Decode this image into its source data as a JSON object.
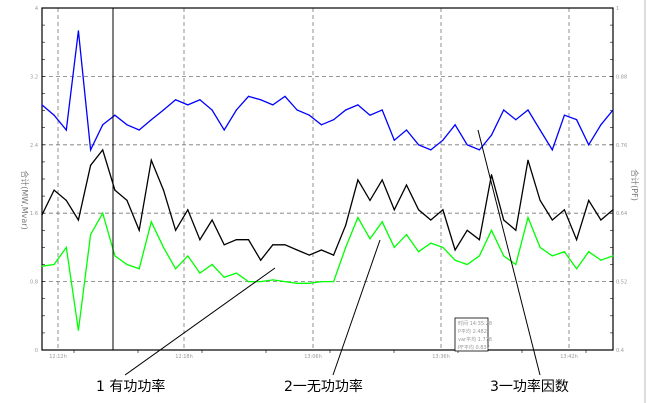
{
  "chart_data": {
    "type": "line",
    "left_axis": {
      "label": "合计(MW,Mvar)",
      "range": [
        0,
        4
      ],
      "ticks": [
        "0",
        "0.8",
        "1.6",
        "2.4",
        "3.2",
        "4"
      ]
    },
    "right_axis": {
      "label": "合计(PF)",
      "range": [
        0.4,
        1
      ],
      "ticks": [
        "0.4",
        "0.52",
        "0.64",
        "0.76",
        "0.88",
        "1"
      ]
    },
    "x_ticks": [
      "12:12h",
      "12:18h",
      "13:06h",
      "13:36h",
      "13:42h"
    ],
    "grid": true,
    "series": [
      {
        "name": "1 有功功率",
        "axis": "left",
        "color": "#000000",
        "values": [
          1.58,
          1.87,
          1.75,
          1.52,
          2.16,
          2.34,
          1.87,
          1.75,
          1.4,
          2.22,
          1.87,
          1.4,
          1.64,
          1.29,
          1.52,
          1.23,
          1.29,
          1.29,
          1.05,
          1.23,
          1.23,
          1.17,
          1.11,
          1.17,
          1.11,
          1.46,
          1.99,
          1.75,
          1.99,
          1.64,
          1.93,
          1.64,
          1.52,
          1.64,
          1.17,
          1.4,
          1.29,
          2.05,
          1.52,
          1.4,
          2.22,
          1.75,
          1.52,
          1.64,
          1.29,
          1.75,
          1.52,
          1.64
        ]
      },
      {
        "name": "2一无功功率",
        "axis": "left",
        "color": "#00ff00",
        "values": [
          0.98,
          1.0,
          1.2,
          0.23,
          1.35,
          1.6,
          1.1,
          1.0,
          0.95,
          1.5,
          1.2,
          0.95,
          1.1,
          0.9,
          1.0,
          0.85,
          0.9,
          0.8,
          0.8,
          0.82,
          0.8,
          0.78,
          0.78,
          0.8,
          0.8,
          1.2,
          1.55,
          1.3,
          1.5,
          1.2,
          1.35,
          1.15,
          1.25,
          1.2,
          1.05,
          1.0,
          1.1,
          1.4,
          1.1,
          1.0,
          1.55,
          1.2,
          1.1,
          1.15,
          0.95,
          1.15,
          1.05,
          1.1
        ]
      },
      {
        "name": "3一功率因数",
        "axis": "right",
        "color": "#0000ff",
        "values": [
          0.83,
          0.812,
          0.786,
          0.96,
          0.751,
          0.795,
          0.812,
          0.795,
          0.786,
          0.804,
          0.821,
          0.839,
          0.83,
          0.839,
          0.821,
          0.786,
          0.821,
          0.845,
          0.839,
          0.83,
          0.845,
          0.821,
          0.812,
          0.795,
          0.804,
          0.821,
          0.83,
          0.812,
          0.821,
          0.768,
          0.786,
          0.76,
          0.751,
          0.768,
          0.795,
          0.76,
          0.751,
          0.777,
          0.821,
          0.804,
          0.821,
          0.786,
          0.751,
          0.812,
          0.804,
          0.76,
          0.795,
          0.821
        ]
      }
    ],
    "legend_box": [
      "时间 14:35:28",
      "P平均 2.482",
      "var平均 1.778",
      "PF平均 0.837"
    ],
    "annotations": [
      "1 有功功率",
      "2一无功功率",
      "3一功率因数"
    ]
  }
}
